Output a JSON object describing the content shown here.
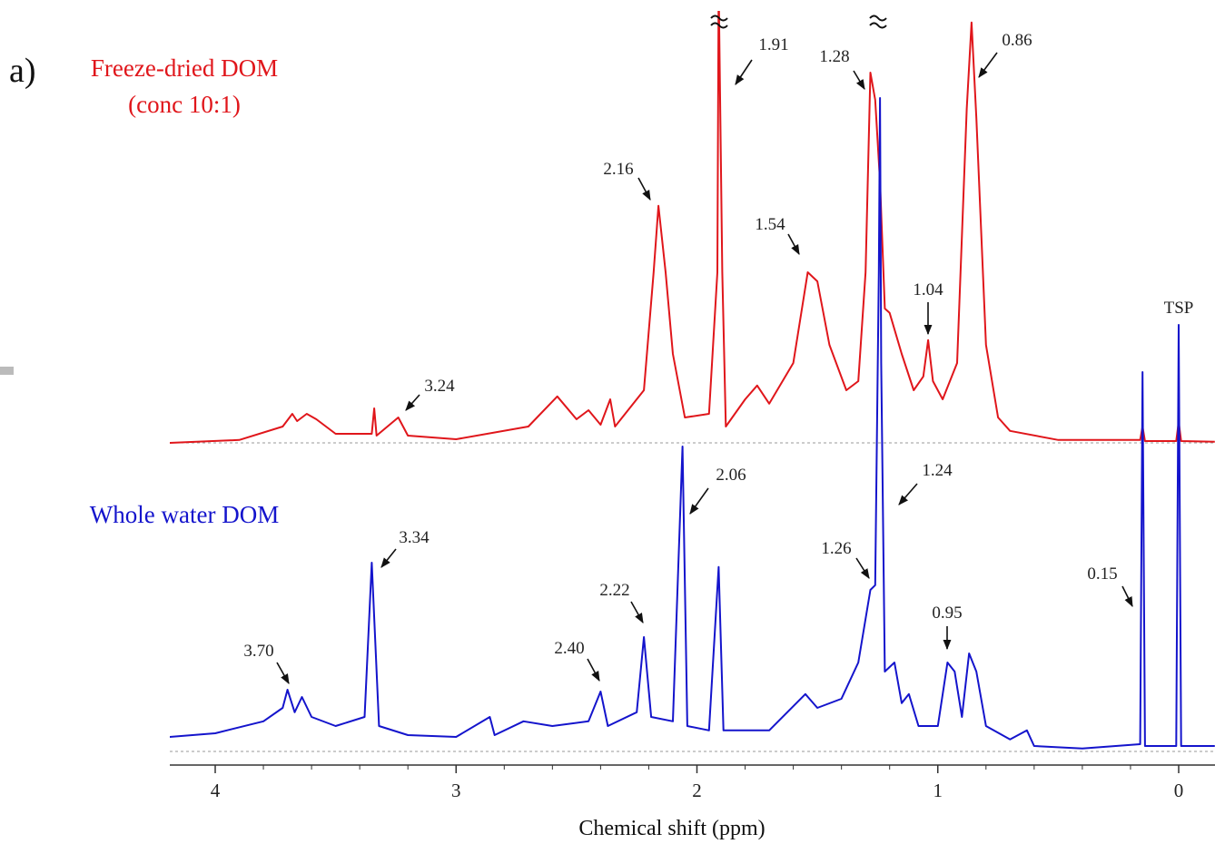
{
  "chart_data": {
    "type": "line",
    "panel_label": "a)",
    "xlabel": "Chemical shift (ppm)",
    "xlim": [
      4.19,
      -0.15
    ],
    "xticks": [
      4,
      3,
      2,
      1,
      0
    ],
    "ylim": [
      0,
      205
    ],
    "series": [
      {
        "name": "Freeze-dried DOM",
        "concentration": "(conc 10:1)",
        "color": "#e0161b",
        "x": [
          4.19,
          3.9,
          3.72,
          3.68,
          3.66,
          3.62,
          3.58,
          3.5,
          3.35,
          3.34,
          3.33,
          3.24,
          3.2,
          3.0,
          2.7,
          2.58,
          2.5,
          2.45,
          2.4,
          2.36,
          2.34,
          2.22,
          2.18,
          2.16,
          2.13,
          2.1,
          2.05,
          1.95,
          1.915,
          1.91,
          1.895,
          1.88,
          1.8,
          1.75,
          1.7,
          1.6,
          1.54,
          1.5,
          1.45,
          1.38,
          1.33,
          1.3,
          1.28,
          1.26,
          1.24,
          1.22,
          1.2,
          1.15,
          1.1,
          1.06,
          1.04,
          1.02,
          0.98,
          0.92,
          0.88,
          0.86,
          0.84,
          0.8,
          0.75,
          0.7,
          0.5,
          0.16,
          0.15,
          0.14,
          0.01,
          0.0,
          -0.01,
          -0.15
        ],
        "values": [
          0,
          0.8,
          4.5,
          8,
          6,
          8,
          6.5,
          2.5,
          2.5,
          9.5,
          2,
          7,
          2,
          1,
          4.5,
          12.8,
          6.5,
          9,
          5,
          12,
          4.5,
          14.5,
          47,
          65.3,
          47,
          24.5,
          7,
          8,
          47,
          127,
          47,
          4.5,
          12,
          15.8,
          10.8,
          22,
          47,
          44.5,
          27,
          14.5,
          17,
          47,
          102,
          94.5,
          72,
          37,
          35.8,
          24.5,
          14.5,
          18.3,
          28.3,
          17,
          12,
          22,
          92,
          115.8,
          89.5,
          27,
          7,
          3.3,
          0.8,
          0.8,
          4.5,
          0.5,
          0.5,
          5.8,
          0.5,
          0.3
        ]
      },
      {
        "name": "Whole water DOM",
        "color": "#1414cc",
        "x": [
          4.19,
          4.0,
          3.8,
          3.72,
          3.7,
          3.67,
          3.64,
          3.6,
          3.5,
          3.38,
          3.35,
          3.32,
          3.2,
          3.0,
          2.86,
          2.84,
          2.72,
          2.6,
          2.45,
          2.4,
          2.37,
          2.25,
          2.22,
          2.19,
          2.1,
          2.06,
          2.04,
          1.95,
          1.91,
          1.89,
          1.7,
          1.55,
          1.5,
          1.4,
          1.33,
          1.28,
          1.26,
          1.245,
          1.24,
          1.235,
          1.22,
          1.18,
          1.15,
          1.12,
          1.08,
          1.0,
          0.96,
          0.93,
          0.9,
          0.87,
          0.84,
          0.8,
          0.7,
          0.63,
          0.6,
          0.4,
          0.16,
          0.15,
          0.14,
          0.01,
          0.0,
          -0.01,
          -0.15
        ],
        "values": [
          4,
          5,
          8.3,
          12,
          17,
          10.8,
          15,
          9.5,
          7,
          9.5,
          52,
          7,
          4.5,
          4,
          9.5,
          4.5,
          8.3,
          7,
          8.3,
          16.5,
          7,
          10.8,
          31.5,
          9.5,
          8.3,
          84,
          7,
          5.8,
          50.8,
          5.8,
          5.8,
          15.8,
          12,
          14.5,
          24.5,
          44.5,
          45.8,
          132,
          180,
          107,
          22,
          24.5,
          13.3,
          15.8,
          7,
          7,
          24.5,
          22,
          9.5,
          27,
          22,
          7,
          3.3,
          5.8,
          1.5,
          0.8,
          2,
          104.5,
          1.5,
          1.5,
          117.5,
          1.5,
          1.5
        ]
      }
    ],
    "annotations": [
      "1.91",
      "1.28",
      "0.86",
      "2.16",
      "1.54",
      "1.04",
      "3.24",
      "TSP",
      "2.06",
      "1.24",
      "3.34",
      "1.26",
      "2.22",
      "0.15",
      "0.95",
      "2.40",
      "3.70"
    ]
  }
}
